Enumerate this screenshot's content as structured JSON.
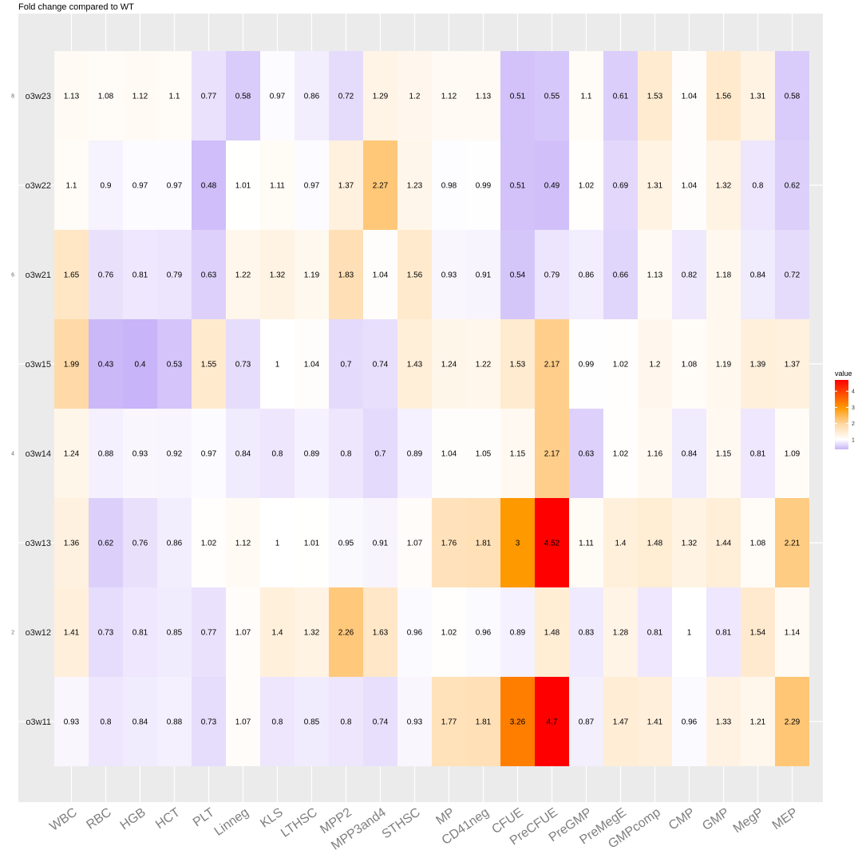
{
  "chart_data": {
    "type": "heatmap",
    "title": "Fold change compared to WT",
    "columns": [
      "WBC",
      "RBC",
      "HGB",
      "HCT",
      "PLT",
      "Linneg",
      "KLS",
      "LTHSC",
      "MPP2",
      "MPP3and4",
      "STHSC",
      "MP",
      "CD41neg",
      "CFUE",
      "PreCFUE",
      "PreGMP",
      "PreMegE",
      "GMPcomp",
      "CMP",
      "GMP",
      "MegP",
      "MEP"
    ],
    "rows": [
      "o3w23",
      "o3w22",
      "o3w21",
      "o3w15",
      "o3w14",
      "o3w13",
      "o3w12",
      "o3w11"
    ],
    "cell_labels": [
      [
        "1.13",
        "1.08",
        "1.12",
        "1.1",
        "0.77",
        "0.58",
        "0.97",
        "0.86",
        "0.72",
        "1.29",
        "1.2",
        "1.12",
        "1.13",
        "0.51",
        "0.55",
        "1.1",
        "0.61",
        "1.53",
        "1.04",
        "1.56",
        "1.31",
        "0.58"
      ],
      [
        "1.1",
        "0.9",
        "0.97",
        "0.97",
        "0.48",
        "1.01",
        "1.11",
        "0.97",
        "1.37",
        "2.27",
        "1.23",
        "0.98",
        "0.99",
        "0.51",
        "0.49",
        "1.02",
        "0.69",
        "1.31",
        "1.04",
        "1.32",
        "0.8",
        "0.62"
      ],
      [
        "1.65",
        "0.76",
        "0.81",
        "0.79",
        "0.63",
        "1.22",
        "1.32",
        "1.19",
        "1.83",
        "1.04",
        "1.56",
        "0.93",
        "0.91",
        "0.54",
        "0.79",
        "0.86",
        "0.66",
        "1.13",
        "0.82",
        "1.18",
        "0.84",
        "0.72"
      ],
      [
        "1.99",
        "0.43",
        "0.4",
        "0.53",
        "1.55",
        "0.73",
        "1",
        "1.04",
        "0.7",
        "0.74",
        "1.43",
        "1.24",
        "1.22",
        "1.53",
        "2.17",
        "0.99",
        "1.02",
        "1.2",
        "1.08",
        "1.19",
        "1.39",
        "1.37"
      ],
      [
        "1.24",
        "0.88",
        "0.93",
        "0.92",
        "0.97",
        "0.84",
        "0.8",
        "0.89",
        "0.8",
        "0.7",
        "0.89",
        "1.04",
        "1.05",
        "1.15",
        "2.17",
        "0.63",
        "1.02",
        "1.16",
        "0.84",
        "1.15",
        "0.81",
        "1.09"
      ],
      [
        "1.36",
        "0.62",
        "0.76",
        "0.86",
        "1.02",
        "1.12",
        "1",
        "1.01",
        "0.95",
        "0.91",
        "1.07",
        "1.76",
        "1.81",
        "3",
        "4.52",
        "1.11",
        "1.4",
        "1.48",
        "1.32",
        "1.44",
        "1.08",
        "2.21"
      ],
      [
        "1.41",
        "0.73",
        "0.81",
        "0.85",
        "0.77",
        "1.07",
        "1.4",
        "1.32",
        "2.26",
        "1.63",
        "0.96",
        "1.02",
        "0.96",
        "0.89",
        "1.48",
        "0.83",
        "1.28",
        "0.81",
        "1",
        "0.81",
        "1.54",
        "1.14"
      ],
      [
        "0.93",
        "0.8",
        "0.84",
        "0.88",
        "0.73",
        "1.07",
        "0.8",
        "0.85",
        "0.8",
        "0.74",
        "0.93",
        "1.77",
        "1.81",
        "3.26",
        "4.7",
        "0.87",
        "1.47",
        "1.41",
        "0.96",
        "1.33",
        "1.21",
        "2.29"
      ]
    ],
    "y_ticks": [
      "8",
      "6",
      "4",
      "2"
    ],
    "legend": {
      "title": "value",
      "ticks": [
        "4",
        "3",
        "2",
        "1"
      ],
      "placement": "right",
      "range": [
        0.4,
        4.7
      ]
    },
    "colors": {
      "low": "#c8b4f8",
      "mid": "#ffffff",
      "high": "#ff0000",
      "panel": "#ebebeb",
      "grid": "#ffffff",
      "orange": "#ff9900"
    },
    "grid": true
  }
}
